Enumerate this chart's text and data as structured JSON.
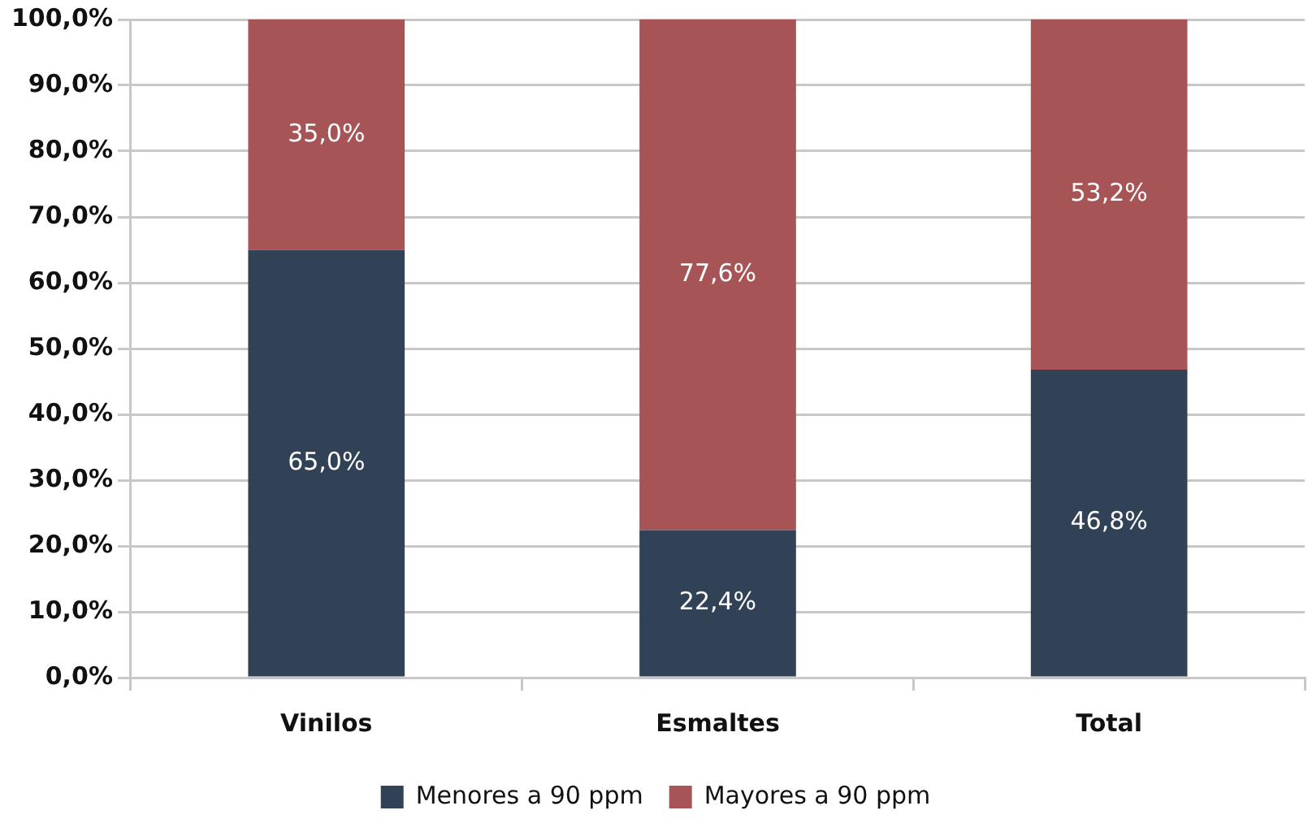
{
  "chart_data": {
    "type": "bar",
    "stacked": true,
    "categories": [
      "Vinilos",
      "Esmaltes",
      "Total"
    ],
    "series": [
      {
        "name": "Menores a 90 ppm",
        "color": "#314257",
        "values": [
          65.0,
          22.4,
          46.8
        ],
        "value_labels": [
          "65,0%",
          "22,4%",
          "46,8%"
        ]
      },
      {
        "name": "Mayores a 90 ppm",
        "color": "#a65455",
        "values": [
          35.0,
          77.6,
          53.2
        ],
        "value_labels": [
          "35,0%",
          "77,6%",
          "53,2%"
        ]
      }
    ],
    "ylim": [
      0,
      100
    ],
    "yticks": [
      {
        "value": 0,
        "label": "0,0%"
      },
      {
        "value": 10,
        "label": "10,0%"
      },
      {
        "value": 20,
        "label": "20,0%"
      },
      {
        "value": 30,
        "label": "30,0%"
      },
      {
        "value": 40,
        "label": "40,0%"
      },
      {
        "value": 50,
        "label": "50,0%"
      },
      {
        "value": 60,
        "label": "60,0%"
      },
      {
        "value": 70,
        "label": "70,0%"
      },
      {
        "value": 80,
        "label": "80,0%"
      },
      {
        "value": 90,
        "label": "90,0%"
      },
      {
        "value": 100,
        "label": "100,0%"
      }
    ],
    "grid": "y",
    "legend": "bottom"
  }
}
